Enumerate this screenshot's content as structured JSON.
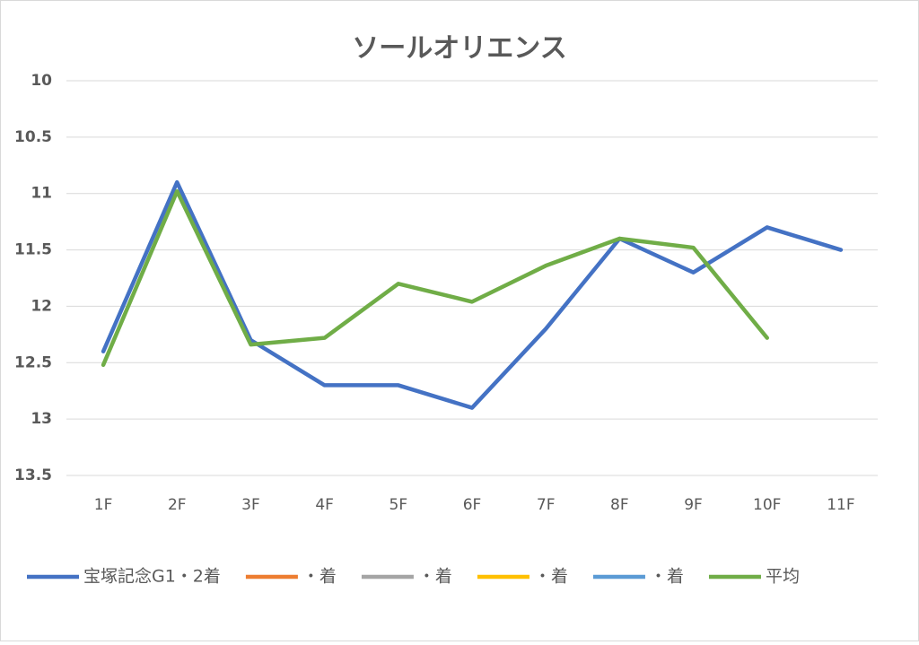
{
  "chart_data": {
    "type": "line",
    "title": "ソールオリエンス",
    "categories": [
      "1F",
      "2F",
      "3F",
      "4F",
      "5F",
      "6F",
      "7F",
      "8F",
      "9F",
      "10F",
      "11F"
    ],
    "series": [
      {
        "name": "宝塚記念G1・2着",
        "color": "#4472c4",
        "values": [
          12.4,
          10.9,
          12.3,
          12.7,
          12.7,
          12.9,
          12.2,
          11.4,
          11.7,
          11.3,
          11.5
        ]
      },
      {
        "name": "・着",
        "color": "#ed7d31",
        "values": [
          null,
          null,
          null,
          null,
          null,
          null,
          null,
          null,
          null,
          null,
          null
        ]
      },
      {
        "name": "・着",
        "color": "#a5a5a5",
        "values": [
          null,
          null,
          null,
          null,
          null,
          null,
          null,
          null,
          null,
          null,
          null
        ]
      },
      {
        "name": "・着",
        "color": "#ffc000",
        "values": [
          null,
          null,
          null,
          null,
          null,
          null,
          null,
          null,
          null,
          null,
          null
        ]
      },
      {
        "name": "・着",
        "color": "#5b9bd5",
        "values": [
          null,
          null,
          null,
          null,
          null,
          null,
          null,
          null,
          null,
          null,
          null
        ]
      },
      {
        "name": "平均",
        "color": "#70ad47",
        "values": [
          12.52,
          10.98,
          12.34,
          12.28,
          11.8,
          11.96,
          11.64,
          11.4,
          11.48,
          12.28,
          null
        ]
      }
    ],
    "ylim": [
      10,
      13.5
    ],
    "yticks": [
      10,
      10.5,
      11,
      11.5,
      12,
      12.5,
      13,
      13.5
    ],
    "y_reversed": true,
    "grid": true,
    "legend": "bottom"
  }
}
